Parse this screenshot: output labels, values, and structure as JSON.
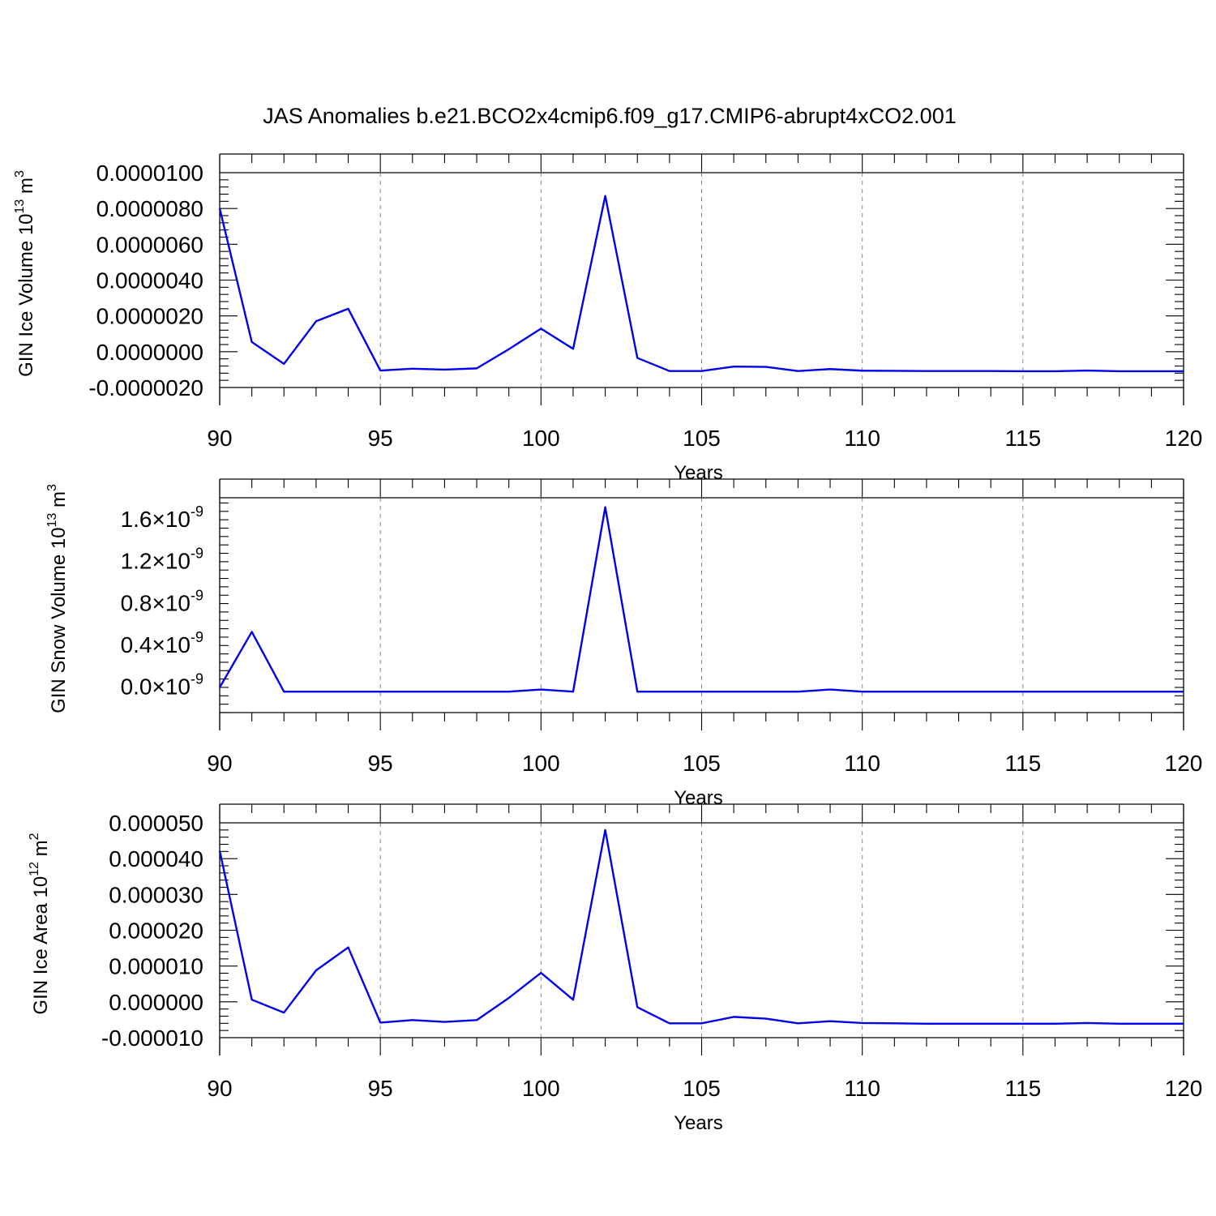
{
  "title": "JAS Anomalies b.e21.BCO2x4cmip6.f09_g17.CMIP6-abrupt4xCO2.001",
  "colors": {
    "line": "#0000ee",
    "axis": "#000000",
    "grid": "#888888"
  },
  "chart_data": [
    {
      "type": "line",
      "title": "",
      "xlabel": "Years",
      "ylabel": "GIN Ice Volume 10",
      "ylabel_exp": "13",
      "ylabel_unit": " m",
      "ylabel_unit_exp": "3",
      "xlim": [
        90,
        120
      ],
      "ylim": [
        -2e-06,
        1e-05
      ],
      "xticks": [
        90,
        95,
        100,
        105,
        110,
        115,
        120
      ],
      "xtick_labels": [
        "90",
        "95",
        "100",
        "105",
        "110",
        "115",
        "120"
      ],
      "yticks": [
        -2e-06,
        0,
        2e-06,
        4e-06,
        6e-06,
        8e-06,
        1e-05
      ],
      "ytick_labels": [
        "-0.0000020",
        "0.0000000",
        "0.0000020",
        "0.0000040",
        "0.0000060",
        "0.0000080",
        "0.0000100"
      ],
      "grid_x": true,
      "series": [
        {
          "x": [
            90,
            91,
            92,
            93,
            94,
            95,
            96,
            97,
            98,
            99,
            100,
            101,
            102,
            103,
            104,
            105,
            106,
            107,
            108,
            109,
            110,
            111,
            112,
            113,
            114,
            115,
            116,
            117,
            118,
            119,
            120
          ],
          "values": [
            8e-06,
            5.4e-07,
            -6.8e-07,
            1.7e-06,
            2.4e-06,
            -1.05e-06,
            -9.5e-07,
            -1e-06,
            -9.3e-07,
            1.4e-07,
            1.29e-06,
            1.6e-07,
            8.7e-06,
            -3.5e-07,
            -1.08e-06,
            -1.08e-06,
            -8.3e-07,
            -8.5e-07,
            -1.08e-06,
            -9.7e-07,
            -1.06e-06,
            -1.07e-06,
            -1.08e-06,
            -1.08e-06,
            -1.08e-06,
            -1.09e-06,
            -1.09e-06,
            -1.05e-06,
            -1.09e-06,
            -1.09e-06,
            -1.09e-06
          ]
        }
      ]
    },
    {
      "type": "line",
      "title": "",
      "xlabel": "Years",
      "ylabel": "GIN Snow Volume 10",
      "ylabel_exp": "13",
      "ylabel_unit": " m",
      "ylabel_unit_exp": "3",
      "xlim": [
        90,
        120
      ],
      "ylim": [
        -2.5e-10,
        1.8e-09
      ],
      "xticks": [
        90,
        95,
        100,
        105,
        110,
        115,
        120
      ],
      "xtick_labels": [
        "90",
        "95",
        "100",
        "105",
        "110",
        "115",
        "120"
      ],
      "yticks": [
        0,
        4e-10,
        8e-10,
        1.2e-09,
        1.6e-09
      ],
      "ytick_labels": [
        "0.0×10",
        "0.4×10",
        "0.8×10",
        "1.2×10",
        "1.6×10"
      ],
      "ytick_exp": "-9",
      "grid_x": true,
      "series": [
        {
          "x": [
            90,
            91,
            92,
            93,
            94,
            95,
            96,
            97,
            98,
            99,
            100,
            101,
            102,
            103,
            104,
            105,
            106,
            107,
            108,
            109,
            110,
            111,
            112,
            113,
            114,
            115,
            116,
            117,
            118,
            119,
            120
          ],
          "values": [
            -1e-11,
            5.2e-10,
            -5e-11,
            -5e-11,
            -5e-11,
            -5e-11,
            -5e-11,
            -5e-11,
            -5e-11,
            -5e-11,
            -3e-11,
            -5e-11,
            1.71e-09,
            -5e-11,
            -5e-11,
            -5e-11,
            -5e-11,
            -5e-11,
            -5e-11,
            -3e-11,
            -5e-11,
            -5e-11,
            -5e-11,
            -5e-11,
            -5e-11,
            -5e-11,
            -5e-11,
            -5e-11,
            -5e-11,
            -5e-11,
            -5e-11
          ]
        }
      ]
    },
    {
      "type": "line",
      "title": "",
      "xlabel": "Years",
      "ylabel": "GIN Ice Area 10",
      "ylabel_exp": "12",
      "ylabel_unit": " m",
      "ylabel_unit_exp": "2",
      "xlim": [
        90,
        120
      ],
      "ylim": [
        -1e-05,
        5e-05
      ],
      "xticks": [
        90,
        95,
        100,
        105,
        110,
        115,
        120
      ],
      "xtick_labels": [
        "90",
        "95",
        "100",
        "105",
        "110",
        "115",
        "120"
      ],
      "yticks": [
        -1e-05,
        0,
        1e-05,
        2e-05,
        3e-05,
        4e-05,
        5e-05
      ],
      "ytick_labels": [
        "-0.000010",
        "0.000000",
        "0.000010",
        "0.000020",
        "0.000030",
        "0.000040",
        "0.000050"
      ],
      "grid_x": true,
      "series": [
        {
          "x": [
            90,
            91,
            92,
            93,
            94,
            95,
            96,
            97,
            98,
            99,
            100,
            101,
            102,
            103,
            104,
            105,
            106,
            107,
            108,
            109,
            110,
            111,
            112,
            113,
            114,
            115,
            116,
            117,
            118,
            119,
            120
          ],
          "values": [
            4.22e-05,
            6e-07,
            -3e-06,
            8.8e-06,
            1.52e-05,
            -5.8e-06,
            -5.1e-06,
            -5.6e-06,
            -5.1e-06,
            1.1e-06,
            8.1e-06,
            6e-07,
            4.8e-05,
            -1.5e-06,
            -6e-06,
            -6e-06,
            -4.2e-06,
            -4.7e-06,
            -6e-06,
            -5.4e-06,
            -5.9e-06,
            -6e-06,
            -6.1e-06,
            -6.1e-06,
            -6.1e-06,
            -6.1e-06,
            -6.1e-06,
            -5.9e-06,
            -6.1e-06,
            -6.1e-06,
            -6.1e-06
          ]
        }
      ]
    }
  ]
}
